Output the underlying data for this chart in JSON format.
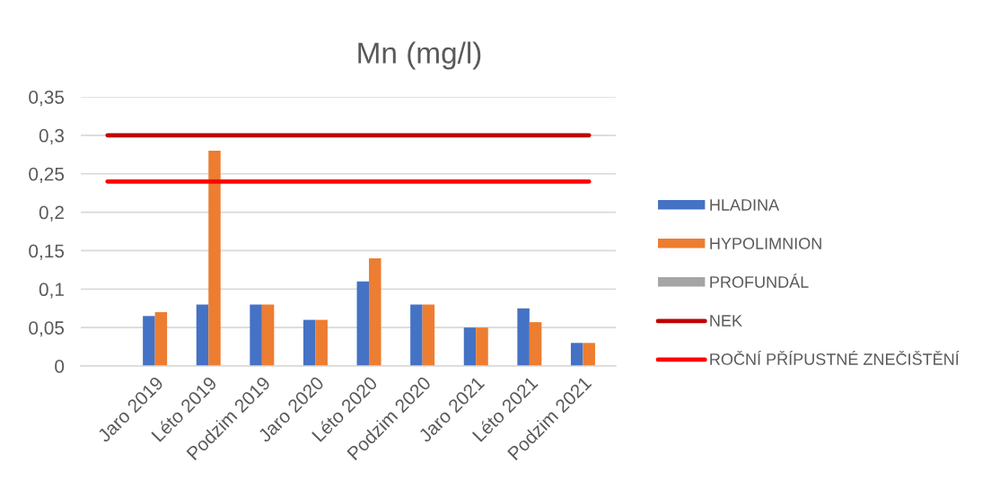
{
  "chart_data": {
    "type": "bar",
    "title": "Mn (mg/l)",
    "categories": [
      null,
      "Jaro 2019",
      "Léto 2019",
      "Podzim 2019",
      "Jaro 2020",
      "Léto 2020",
      "Podzim 2020",
      "Jaro 2021",
      "Léto 2021",
      "Podzim 2021"
    ],
    "series": [
      {
        "name": "HLADINA",
        "color": "#4472c4",
        "values": [
          null,
          0.065,
          0.08,
          0.08,
          0.06,
          0.11,
          0.08,
          0.05,
          0.075,
          0.03
        ]
      },
      {
        "name": "HYPOLIMNION",
        "color": "#ed7d31",
        "values": [
          null,
          0.07,
          0.28,
          0.08,
          0.06,
          0.14,
          0.08,
          0.05,
          0.057,
          0.03
        ]
      },
      {
        "name": "PROFUNDÁL",
        "color": "#a5a5a5",
        "values": [
          null,
          null,
          null,
          null,
          null,
          null,
          null,
          null,
          null,
          null
        ]
      },
      {
        "name": "NEK",
        "type": "line",
        "color": "#c00000",
        "values": [
          0.3,
          0.3,
          0.3,
          0.3,
          0.3,
          0.3,
          0.3,
          0.3,
          0.3,
          0.3
        ]
      },
      {
        "name": "ROČNÍ PŘÍPUSTNÉ ZNEČIŠTĚNÍ",
        "type": "line",
        "color": "#ff0000",
        "values": [
          0.24,
          0.24,
          0.24,
          0.24,
          0.24,
          0.24,
          0.24,
          0.24,
          0.24,
          0.24
        ]
      }
    ],
    "ylim": [
      0,
      0.35
    ],
    "yticks": [
      0,
      {
        "value": 0.05,
        "label": "0,05"
      },
      {
        "value": 0.1,
        "label": "0,1"
      },
      {
        "value": 0.15,
        "label": "0,15"
      },
      {
        "value": 0.2,
        "label": "0,2"
      },
      {
        "value": 0.25,
        "label": "0,25"
      },
      {
        "value": 0.3,
        "label": "0,3"
      },
      {
        "value": 0.35,
        "label": "0,35"
      }
    ],
    "grid": "y",
    "legend": "right"
  }
}
